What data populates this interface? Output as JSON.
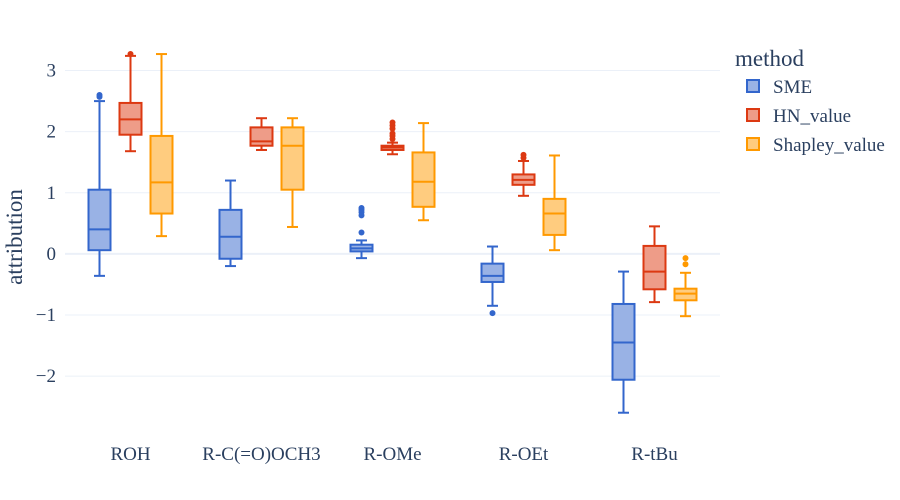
{
  "chart_data": {
    "type": "box",
    "ylabel": "attribution",
    "xlabel": "",
    "ylim": [
      -2.85,
      3.5
    ],
    "y_ticks": [
      -2,
      -1,
      0,
      1,
      2,
      3
    ],
    "y_tick_labels": [
      "−2",
      "−1",
      "0",
      "1",
      "2",
      "3"
    ],
    "grid": true,
    "legend": {
      "title": "method",
      "position": "right"
    },
    "categories": [
      "ROH",
      "R-C(=O)OCH3",
      "R-OMe",
      "R-OEt",
      "R-tBu"
    ],
    "series": [
      {
        "name": "SME",
        "color": "#3366CC",
        "fill": "#99B2E5",
        "boxes": [
          {
            "min": -0.36,
            "q1": 0.06,
            "median": 0.4,
            "q3": 1.05,
            "max": 2.5,
            "outliers": [
              2.57,
              2.6
            ]
          },
          {
            "min": -0.2,
            "q1": -0.08,
            "median": 0.28,
            "q3": 0.72,
            "max": 1.2,
            "outliers": []
          },
          {
            "min": -0.07,
            "q1": 0.04,
            "median": 0.09,
            "q3": 0.15,
            "max": 0.22,
            "outliers": [
              0.35,
              0.63,
              0.68,
              0.72,
              0.75
            ]
          },
          {
            "min": -0.85,
            "q1": -0.46,
            "median": -0.36,
            "q3": -0.16,
            "max": 0.12,
            "outliers": [
              -0.97
            ]
          },
          {
            "min": -2.6,
            "q1": -2.06,
            "median": -1.45,
            "q3": -0.82,
            "max": -0.29,
            "outliers": []
          }
        ]
      },
      {
        "name": "HN_value",
        "color": "#DC3912",
        "fill": "#EE9C88",
        "boxes": [
          {
            "min": 1.68,
            "q1": 1.95,
            "median": 2.2,
            "q3": 2.47,
            "max": 3.24,
            "outliers": [
              3.27
            ]
          },
          {
            "min": 1.7,
            "q1": 1.77,
            "median": 1.84,
            "q3": 2.07,
            "max": 2.22,
            "outliers": []
          },
          {
            "min": 1.63,
            "q1": 1.7,
            "median": 1.74,
            "q3": 1.77,
            "max": 1.82,
            "outliers": [
              1.88,
              1.93,
              1.97,
              2.05,
              2.1,
              2.15
            ]
          },
          {
            "min": 0.95,
            "q1": 1.13,
            "median": 1.21,
            "q3": 1.3,
            "max": 1.52,
            "outliers": [
              1.57,
              1.62
            ]
          },
          {
            "min": -0.79,
            "q1": -0.58,
            "median": -0.29,
            "q3": 0.13,
            "max": 0.45,
            "outliers": []
          }
        ]
      },
      {
        "name": "Shapley_value",
        "color": "#FF9900",
        "fill": "#FFCC7F",
        "boxes": [
          {
            "min": 0.29,
            "q1": 0.66,
            "median": 1.17,
            "q3": 1.93,
            "max": 3.27,
            "outliers": []
          },
          {
            "min": 0.44,
            "q1": 1.05,
            "median": 1.77,
            "q3": 2.07,
            "max": 2.22,
            "outliers": []
          },
          {
            "min": 0.55,
            "q1": 0.77,
            "median": 1.18,
            "q3": 1.66,
            "max": 2.14,
            "outliers": []
          },
          {
            "min": 0.06,
            "q1": 0.31,
            "median": 0.66,
            "q3": 0.9,
            "max": 1.61,
            "outliers": []
          },
          {
            "min": -1.02,
            "q1": -0.76,
            "median": -0.65,
            "q3": -0.57,
            "max": -0.31,
            "outliers": [
              -0.17,
              -0.07
            ]
          }
        ]
      }
    ]
  }
}
